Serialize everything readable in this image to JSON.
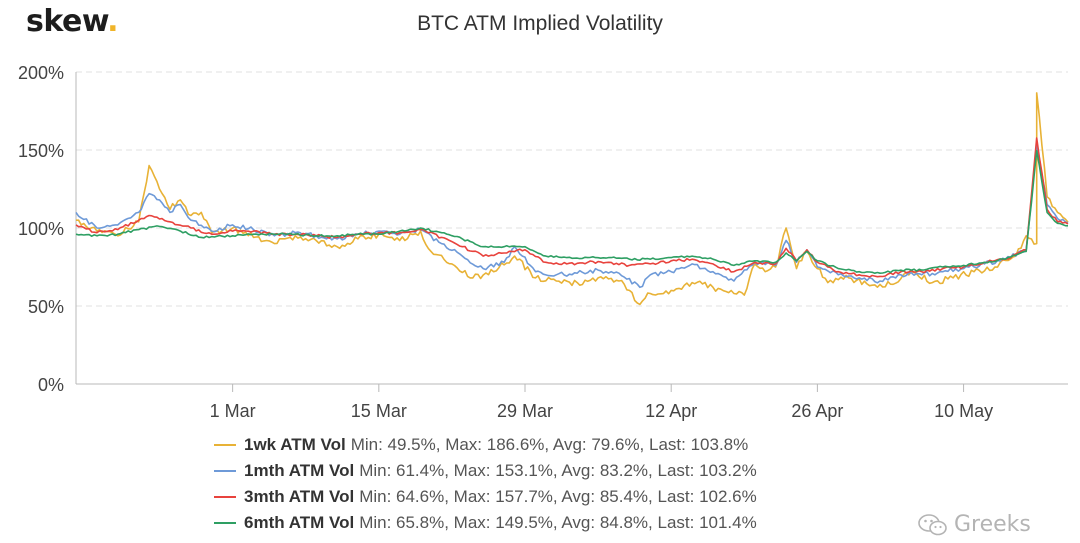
{
  "brand": {
    "name": "skew",
    "dot": "."
  },
  "watermark": {
    "text": "Greeks"
  },
  "colors": {
    "1wk": "#e8b236",
    "1mth": "#6e9ad8",
    "3mth": "#e8433d",
    "6mth": "#2e9f63",
    "grid": "#e0e0e0",
    "axis": "#b8b8b8"
  },
  "chart_data": {
    "type": "line",
    "title": "BTC ATM Implied Volatility",
    "xlabel": "",
    "ylabel": "",
    "x_domain": [
      "2020-02-15",
      "2020-05-20"
    ],
    "x_ticks": [
      {
        "date": "2020-03-01",
        "label": "1 Mar"
      },
      {
        "date": "2020-03-15",
        "label": "15 Mar"
      },
      {
        "date": "2020-03-29",
        "label": "29 Mar"
      },
      {
        "date": "2020-04-12",
        "label": "12 Apr"
      },
      {
        "date": "2020-04-26",
        "label": "26 Apr"
      },
      {
        "date": "2020-05-10",
        "label": "10 May"
      }
    ],
    "y_ticks": [
      0,
      50,
      100,
      150,
      200
    ],
    "y_tick_labels": [
      "0%",
      "50%",
      "100%",
      "150%",
      "200%"
    ],
    "ylim": [
      0,
      200
    ],
    "grid": true,
    "legend": "bottom",
    "series": [
      {
        "key": "1wk",
        "name": "1wk ATM Vol",
        "summary": "Min: 49.5%, Max: 186.6%, Avg: 79.6%, Last: 103.8%",
        "points": [
          [
            "2020-02-15",
            105
          ],
          [
            "2020-02-17",
            98
          ],
          [
            "2020-02-19",
            95
          ],
          [
            "2020-02-21",
            104
          ],
          [
            "2020-02-22",
            140
          ],
          [
            "2020-02-23",
            125
          ],
          [
            "2020-02-24",
            112
          ],
          [
            "2020-02-25",
            118
          ],
          [
            "2020-02-26",
            108
          ],
          [
            "2020-02-27",
            110
          ],
          [
            "2020-02-28",
            97
          ],
          [
            "2020-03-01",
            100
          ],
          [
            "2020-03-03",
            94
          ],
          [
            "2020-03-05",
            90
          ],
          [
            "2020-03-07",
            95
          ],
          [
            "2020-03-09",
            92
          ],
          [
            "2020-03-11",
            88
          ],
          [
            "2020-03-13",
            93
          ],
          [
            "2020-03-15",
            96
          ],
          [
            "2020-03-17",
            92
          ],
          [
            "2020-03-19",
            98
          ],
          [
            "2020-03-20",
            85
          ],
          [
            "2020-03-22",
            77
          ],
          [
            "2020-03-24",
            68
          ],
          [
            "2020-03-26",
            72
          ],
          [
            "2020-03-28",
            82
          ],
          [
            "2020-03-30",
            68
          ],
          [
            "2020-04-01",
            66
          ],
          [
            "2020-04-03",
            65
          ],
          [
            "2020-04-05",
            68
          ],
          [
            "2020-04-07",
            66
          ],
          [
            "2020-04-08",
            60
          ],
          [
            "2020-04-09",
            51
          ],
          [
            "2020-04-10",
            58
          ],
          [
            "2020-04-12",
            60
          ],
          [
            "2020-04-14",
            65
          ],
          [
            "2020-04-16",
            62
          ],
          [
            "2020-04-18",
            58
          ],
          [
            "2020-04-19",
            57
          ],
          [
            "2020-04-20",
            77
          ],
          [
            "2020-04-21",
            72
          ],
          [
            "2020-04-22",
            75
          ],
          [
            "2020-04-23",
            100
          ],
          [
            "2020-04-24",
            74
          ],
          [
            "2020-04-25",
            85
          ],
          [
            "2020-04-26",
            74
          ],
          [
            "2020-04-27",
            65
          ],
          [
            "2020-04-29",
            68
          ],
          [
            "2020-05-01",
            63
          ],
          [
            "2020-05-03",
            64
          ],
          [
            "2020-05-05",
            72
          ],
          [
            "2020-05-07",
            65
          ],
          [
            "2020-05-09",
            68
          ],
          [
            "2020-05-11",
            72
          ],
          [
            "2020-05-13",
            75
          ],
          [
            "2020-05-15",
            82
          ],
          [
            "2020-05-16",
            95
          ],
          [
            "2020-05-17",
            90
          ],
          [
            "2020-05-17",
            186.6
          ],
          [
            "2020-05-18",
            120
          ],
          [
            "2020-05-19",
            110
          ],
          [
            "2020-05-20",
            103.8
          ]
        ]
      },
      {
        "key": "1mth",
        "name": "1mth ATM Vol",
        "summary": "Min: 61.4%, Max: 153.1%, Avg: 83.2%, Last: 103.2%",
        "points": [
          [
            "2020-02-15",
            110
          ],
          [
            "2020-02-17",
            100
          ],
          [
            "2020-02-19",
            102
          ],
          [
            "2020-02-21",
            110
          ],
          [
            "2020-02-22",
            122
          ],
          [
            "2020-02-23",
            118
          ],
          [
            "2020-02-24",
            110
          ],
          [
            "2020-02-25",
            115
          ],
          [
            "2020-02-26",
            105
          ],
          [
            "2020-02-28",
            98
          ],
          [
            "2020-03-01",
            102
          ],
          [
            "2020-03-03",
            99
          ],
          [
            "2020-03-05",
            95
          ],
          [
            "2020-03-07",
            97
          ],
          [
            "2020-03-09",
            95
          ],
          [
            "2020-03-11",
            93
          ],
          [
            "2020-03-13",
            96
          ],
          [
            "2020-03-15",
            98
          ],
          [
            "2020-03-17",
            96
          ],
          [
            "2020-03-19",
            99
          ],
          [
            "2020-03-21",
            90
          ],
          [
            "2020-03-23",
            82
          ],
          [
            "2020-03-25",
            74
          ],
          [
            "2020-03-27",
            78
          ],
          [
            "2020-03-28",
            88
          ],
          [
            "2020-03-30",
            72
          ],
          [
            "2020-04-01",
            70
          ],
          [
            "2020-04-03",
            71
          ],
          [
            "2020-04-05",
            73
          ],
          [
            "2020-04-07",
            71
          ],
          [
            "2020-04-09",
            62
          ],
          [
            "2020-04-10",
            70
          ],
          [
            "2020-04-12",
            72
          ],
          [
            "2020-04-14",
            77
          ],
          [
            "2020-04-16",
            72
          ],
          [
            "2020-04-18",
            66
          ],
          [
            "2020-04-20",
            78
          ],
          [
            "2020-04-22",
            76
          ],
          [
            "2020-04-23",
            92
          ],
          [
            "2020-04-24",
            78
          ],
          [
            "2020-04-25",
            86
          ],
          [
            "2020-04-26",
            75
          ],
          [
            "2020-04-28",
            70
          ],
          [
            "2020-04-30",
            68
          ],
          [
            "2020-05-02",
            66
          ],
          [
            "2020-05-04",
            70
          ],
          [
            "2020-05-06",
            70
          ],
          [
            "2020-05-08",
            72
          ],
          [
            "2020-05-10",
            74
          ],
          [
            "2020-05-12",
            77
          ],
          [
            "2020-05-14",
            80
          ],
          [
            "2020-05-16",
            86
          ],
          [
            "2020-05-17",
            153.1
          ],
          [
            "2020-05-18",
            115
          ],
          [
            "2020-05-19",
            106
          ],
          [
            "2020-05-20",
            103.2
          ]
        ]
      },
      {
        "key": "3mth",
        "name": "3mth ATM Vol",
        "summary": "Min: 64.6%, Max: 157.7%, Avg: 85.4%, Last: 102.6%",
        "points": [
          [
            "2020-02-15",
            102
          ],
          [
            "2020-02-17",
            97
          ],
          [
            "2020-02-19",
            99
          ],
          [
            "2020-02-21",
            105
          ],
          [
            "2020-02-22",
            108
          ],
          [
            "2020-02-24",
            104
          ],
          [
            "2020-02-26",
            100
          ],
          [
            "2020-02-28",
            96
          ],
          [
            "2020-03-01",
            98
          ],
          [
            "2020-03-03",
            98
          ],
          [
            "2020-03-05",
            96
          ],
          [
            "2020-03-07",
            96
          ],
          [
            "2020-03-09",
            95
          ],
          [
            "2020-03-11",
            94
          ],
          [
            "2020-03-13",
            96
          ],
          [
            "2020-03-15",
            97
          ],
          [
            "2020-03-17",
            97
          ],
          [
            "2020-03-19",
            99
          ],
          [
            "2020-03-21",
            94
          ],
          [
            "2020-03-23",
            88
          ],
          [
            "2020-03-25",
            82
          ],
          [
            "2020-03-27",
            84
          ],
          [
            "2020-03-29",
            86
          ],
          [
            "2020-03-31",
            78
          ],
          [
            "2020-04-02",
            77
          ],
          [
            "2020-04-04",
            78
          ],
          [
            "2020-04-06",
            78
          ],
          [
            "2020-04-08",
            76
          ],
          [
            "2020-04-10",
            77
          ],
          [
            "2020-04-12",
            79
          ],
          [
            "2020-04-14",
            80
          ],
          [
            "2020-04-16",
            77
          ],
          [
            "2020-04-18",
            72
          ],
          [
            "2020-04-20",
            78
          ],
          [
            "2020-04-22",
            77
          ],
          [
            "2020-04-23",
            87
          ],
          [
            "2020-04-24",
            79
          ],
          [
            "2020-04-25",
            86
          ],
          [
            "2020-04-26",
            78
          ],
          [
            "2020-04-28",
            72
          ],
          [
            "2020-04-30",
            70
          ],
          [
            "2020-05-02",
            69
          ],
          [
            "2020-05-04",
            72
          ],
          [
            "2020-05-06",
            72
          ],
          [
            "2020-05-08",
            74
          ],
          [
            "2020-05-10",
            75
          ],
          [
            "2020-05-12",
            78
          ],
          [
            "2020-05-14",
            80
          ],
          [
            "2020-05-16",
            86
          ],
          [
            "2020-05-17",
            157.7
          ],
          [
            "2020-05-18",
            112
          ],
          [
            "2020-05-19",
            104
          ],
          [
            "2020-05-20",
            102.6
          ]
        ]
      },
      {
        "key": "6mth",
        "name": "6mth ATM Vol",
        "summary": "Min: 65.8%, Max: 149.5%, Avg: 84.8%, Last: 101.4%",
        "points": [
          [
            "2020-02-15",
            96
          ],
          [
            "2020-02-17",
            95
          ],
          [
            "2020-02-19",
            96
          ],
          [
            "2020-02-21",
            99
          ],
          [
            "2020-02-23",
            101
          ],
          [
            "2020-02-25",
            98
          ],
          [
            "2020-02-27",
            94
          ],
          [
            "2020-03-01",
            95
          ],
          [
            "2020-03-03",
            96
          ],
          [
            "2020-03-05",
            96
          ],
          [
            "2020-03-07",
            96
          ],
          [
            "2020-03-09",
            95
          ],
          [
            "2020-03-11",
            95
          ],
          [
            "2020-03-13",
            96
          ],
          [
            "2020-03-15",
            96
          ],
          [
            "2020-03-17",
            98
          ],
          [
            "2020-03-19",
            100
          ],
          [
            "2020-03-21",
            97
          ],
          [
            "2020-03-23",
            93
          ],
          [
            "2020-03-25",
            88
          ],
          [
            "2020-03-27",
            88
          ],
          [
            "2020-03-29",
            88
          ],
          [
            "2020-03-31",
            82
          ],
          [
            "2020-04-02",
            81
          ],
          [
            "2020-04-04",
            81
          ],
          [
            "2020-04-06",
            81
          ],
          [
            "2020-04-08",
            80
          ],
          [
            "2020-04-10",
            80
          ],
          [
            "2020-04-12",
            81
          ],
          [
            "2020-04-14",
            82
          ],
          [
            "2020-04-16",
            80
          ],
          [
            "2020-04-18",
            76
          ],
          [
            "2020-04-20",
            79
          ],
          [
            "2020-04-22",
            78
          ],
          [
            "2020-04-23",
            84
          ],
          [
            "2020-04-24",
            79
          ],
          [
            "2020-04-25",
            85
          ],
          [
            "2020-04-26",
            79
          ],
          [
            "2020-04-28",
            74
          ],
          [
            "2020-04-30",
            72
          ],
          [
            "2020-05-02",
            71
          ],
          [
            "2020-05-04",
            73
          ],
          [
            "2020-05-06",
            73
          ],
          [
            "2020-05-08",
            75
          ],
          [
            "2020-05-10",
            76
          ],
          [
            "2020-05-12",
            78
          ],
          [
            "2020-05-14",
            80
          ],
          [
            "2020-05-16",
            85
          ],
          [
            "2020-05-17",
            149.5
          ],
          [
            "2020-05-18",
            110
          ],
          [
            "2020-05-19",
            103
          ],
          [
            "2020-05-20",
            101.4
          ]
        ]
      }
    ]
  }
}
